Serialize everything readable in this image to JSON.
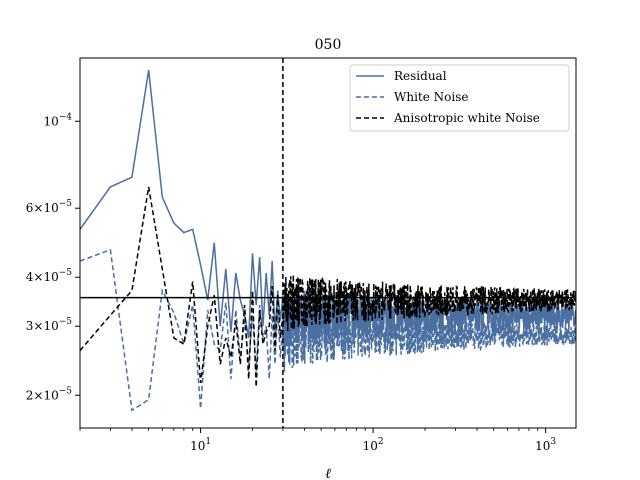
{
  "chart_data": {
    "type": "line",
    "title": "050",
    "xlabel": "ℓ",
    "ylabel": "",
    "xscale": "log",
    "yscale": "log",
    "xlim": [
      2,
      1500
    ],
    "ylim": [
      1.65e-05,
      0.000145
    ],
    "x_ticks": [
      {
        "value": 10,
        "base": "10",
        "exp": "1"
      },
      {
        "value": 100,
        "base": "10",
        "exp": "2"
      },
      {
        "value": 1000,
        "base": "10",
        "exp": "3"
      }
    ],
    "y_ticks": [
      {
        "value": 2e-05,
        "mant": "2",
        "exp": "−5"
      },
      {
        "value": 3e-05,
        "mant": "3",
        "exp": "−5"
      },
      {
        "value": 4e-05,
        "mant": "4",
        "exp": "−5"
      },
      {
        "value": 6e-05,
        "mant": "6",
        "exp": "−5"
      },
      {
        "value": 0.0001,
        "mant": "",
        "exp": "−4"
      }
    ],
    "mult_sign": "×",
    "hline": 3.55e-05,
    "vline": 30,
    "legend_position": "top-right",
    "series": [
      {
        "name": "Residual",
        "color": "#4a6fa0",
        "dash": "solid",
        "x": [
          2,
          3,
          4,
          5,
          6,
          7,
          8,
          9,
          10,
          11,
          12,
          13,
          14,
          15,
          16,
          17,
          18,
          19,
          20,
          21,
          22,
          23,
          24,
          25,
          26,
          27,
          28,
          29,
          30
        ],
        "y": [
          5.3e-05,
          6.8e-05,
          7.2e-05,
          0.000135,
          6.4e-05,
          5.5e-05,
          5.2e-05,
          5.3e-05,
          4.3e-05,
          3.5e-05,
          4.9e-05,
          3e-05,
          4.2e-05,
          2.9e-05,
          4.1e-05,
          3.5e-05,
          3.2e-05,
          2.8e-05,
          4.6e-05,
          3.4e-05,
          4.5e-05,
          3e-05,
          4.1e-05,
          3.2e-05,
          4.4e-05,
          2.9e-05,
          3.7e-05,
          3.1e-05,
          3.6e-05
        ]
      },
      {
        "name": "White Noise",
        "color": "#4a6fa0",
        "dash": "dashed",
        "x": [
          2,
          3,
          4,
          5,
          6,
          7,
          8,
          9,
          10,
          11,
          12,
          13,
          14,
          15,
          16,
          17,
          18,
          19,
          20,
          21,
          22,
          23,
          24,
          25,
          26,
          27,
          28,
          29,
          30
        ],
        "y": [
          4.4e-05,
          4.7e-05,
          1.83e-05,
          1.95e-05,
          3.7e-05,
          3.25e-05,
          2.7e-05,
          3.4e-05,
          1.85e-05,
          3.3e-05,
          2.7e-05,
          2.6e-05,
          3.45e-05,
          2.2e-05,
          3.3e-05,
          2.5e-05,
          3.1e-05,
          2.4e-05,
          3.2e-05,
          2.3e-05,
          3.4e-05,
          2.8e-05,
          3e-05,
          2.2e-05,
          3.2e-05,
          2.4e-05,
          3.3e-05,
          2.5e-05,
          3e-05
        ]
      },
      {
        "name": "Anisotropic white Noise",
        "color": "#000000",
        "dash": "dashed",
        "x": [
          2,
          3,
          4,
          5,
          6,
          7,
          8,
          9,
          10,
          11,
          12,
          13,
          14,
          15,
          16,
          17,
          18,
          19,
          20,
          21,
          22,
          23,
          24,
          25,
          26,
          27,
          28,
          29,
          30
        ],
        "y": [
          2.6e-05,
          3.2e-05,
          3.7e-05,
          6.8e-05,
          4.2e-05,
          2.8e-05,
          2.7e-05,
          3.9e-05,
          2.15e-05,
          3e-05,
          3.6e-05,
          2.4e-05,
          2.8e-05,
          2.5e-05,
          3.1e-05,
          2.4e-05,
          3.4e-05,
          2.2e-05,
          3.7e-05,
          2.1e-05,
          3.3e-05,
          2.7e-05,
          2.9e-05,
          3e-05,
          3.8e-05,
          2.6e-05,
          3.6e-05,
          2.8e-05,
          3.2e-05
        ]
      }
    ],
    "noise_region": {
      "x_start": 30,
      "x_end": 1500,
      "samples": 900,
      "series": [
        {
          "name": "Residual",
          "center": 3.2e-05,
          "amp_start": 6e-06,
          "amp_end": 2.5e-06
        },
        {
          "name": "White Noise",
          "center": 2.85e-05,
          "amp_start": 6e-06,
          "amp_end": 1.5e-06
        },
        {
          "name": "Anisotropic white Noise",
          "center": 3.5e-05,
          "amp_start": 6.5e-06,
          "amp_end": 2.2e-06
        }
      ]
    }
  }
}
